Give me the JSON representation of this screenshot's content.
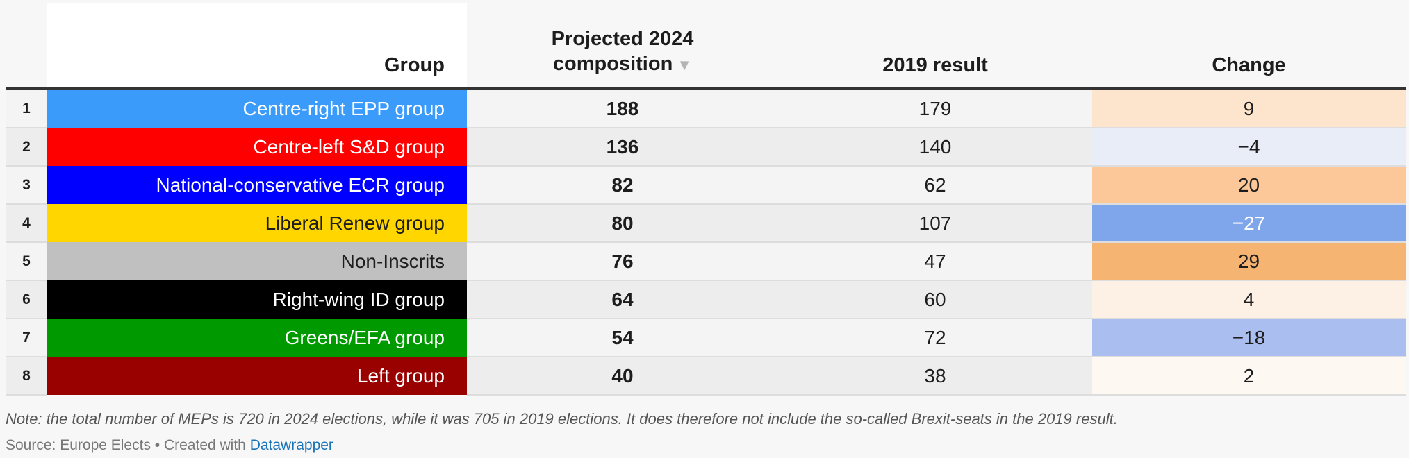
{
  "chart_data": {
    "type": "table",
    "columns": {
      "rank": "",
      "group": "Group",
      "projected_line1": "Projected 2024",
      "projected_line2": "composition",
      "result_2019": "2019 result",
      "change": "Change"
    },
    "sort_indicator": "▼",
    "rows": [
      {
        "rank": "1",
        "group": "Centre-right EPP group",
        "projected": "188",
        "result_2019": "179",
        "change": "9",
        "group_bg": "#3a9bfb",
        "group_fg": "#ffffff",
        "change_bg": "#fde4cc",
        "change_fg": "#1d1d1d"
      },
      {
        "rank": "2",
        "group": "Centre-left S&D group",
        "projected": "136",
        "result_2019": "140",
        "change": "−4",
        "group_bg": "#fe0000",
        "group_fg": "#ffffff",
        "change_bg": "#e9edf8",
        "change_fg": "#1d1d1d"
      },
      {
        "rank": "3",
        "group": "National-conservative ECR group",
        "projected": "82",
        "result_2019": "62",
        "change": "20",
        "group_bg": "#0000fe",
        "group_fg": "#ffffff",
        "change_bg": "#fcc899",
        "change_fg": "#1d1d1d"
      },
      {
        "rank": "4",
        "group": "Liberal Renew group",
        "projected": "80",
        "result_2019": "107",
        "change": "−27",
        "group_bg": "#ffd600",
        "group_fg": "#1d1d1d",
        "change_bg": "#7fa6ea",
        "change_fg": "#ffffff"
      },
      {
        "rank": "5",
        "group": "Non-Inscrits",
        "projected": "76",
        "result_2019": "47",
        "change": "29",
        "group_bg": "#c0c0c0",
        "group_fg": "#1d1d1d",
        "change_bg": "#f6b472",
        "change_fg": "#1d1d1d"
      },
      {
        "rank": "6",
        "group": "Right-wing ID group",
        "projected": "64",
        "result_2019": "60",
        "change": "4",
        "group_bg": "#000000",
        "group_fg": "#ffffff",
        "change_bg": "#fdf1e6",
        "change_fg": "#1d1d1d"
      },
      {
        "rank": "7",
        "group": "Greens/EFA group",
        "projected": "54",
        "result_2019": "72",
        "change": "−18",
        "group_bg": "#009900",
        "group_fg": "#ffffff",
        "change_bg": "#aabff0",
        "change_fg": "#1d1d1d"
      },
      {
        "rank": "8",
        "group": "Left group",
        "projected": "40",
        "result_2019": "38",
        "change": "2",
        "group_bg": "#990000",
        "group_fg": "#ffffff",
        "change_bg": "#fef8f3",
        "change_fg": "#1d1d1d"
      }
    ]
  },
  "footer": {
    "note": "Note: the total number of MEPs is 720 in 2024 elections, while it was 705 in 2019 elections. It does therefore not include the so-called Brexit-seats in the 2019 result.",
    "source_prefix": "Source: Europe Elects • Created with ",
    "source_link": "Datawrapper"
  }
}
